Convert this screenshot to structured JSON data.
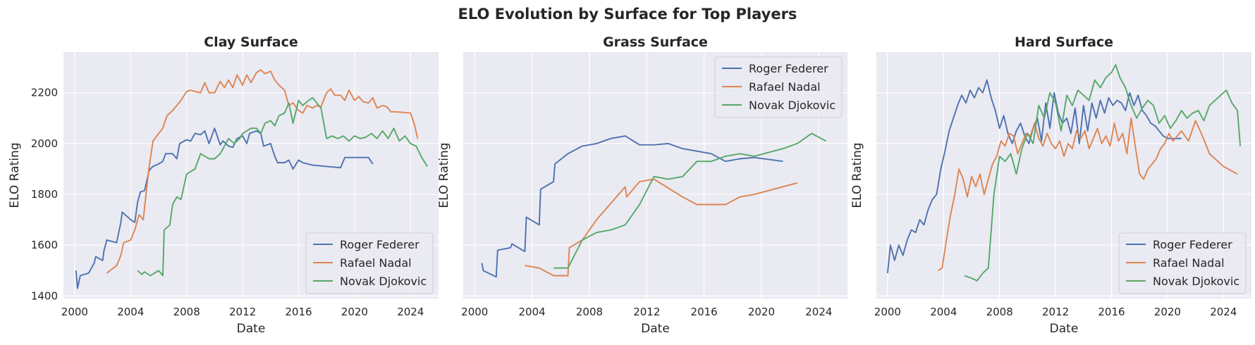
{
  "figure": {
    "title": "ELO Evolution by Surface for Top Players"
  },
  "colors": {
    "Roger Federer": "#4c72b0",
    "Rafael Nadal": "#dd8452",
    "Novak Djokovic": "#55a868",
    "axes_bg": "#eaeaf2",
    "grid": "#ffffff"
  },
  "chart_data": [
    {
      "type": "line",
      "title": "Clay Surface",
      "xlabel": "Date",
      "ylabel": "ELO Rating",
      "xlim": [
        1999.2,
        2026.0
      ],
      "ylim": [
        1390,
        2360
      ],
      "xticks": [
        2000,
        2004,
        2008,
        2012,
        2016,
        2020,
        2024
      ],
      "xtick_labels": [
        "2000",
        "2004",
        "2008",
        "2012",
        "2016",
        "2020",
        "2024"
      ],
      "yticks": [
        1400,
        1600,
        1800,
        2000,
        2200
      ],
      "ytick_labels": [
        "1400",
        "1600",
        "1800",
        "2000",
        "2200"
      ],
      "legend": "lower-right",
      "grid": true,
      "series": [
        {
          "name": "Roger Federer",
          "x": [
            2000.1,
            2000.2,
            2000.4,
            2001.0,
            2001.4,
            2001.5,
            2002.0,
            2002.1,
            2002.3,
            2003.0,
            2003.3,
            2003.4,
            2004.0,
            2004.3,
            2004.5,
            2004.7,
            2005.0,
            2005.3,
            2005.4,
            2005.6,
            2006.0,
            2006.3,
            2006.5,
            2007.0,
            2007.3,
            2007.5,
            2008.0,
            2008.3,
            2008.6,
            2009.0,
            2009.3,
            2009.6,
            2010.0,
            2010.4,
            2010.6,
            2011.0,
            2011.3,
            2011.6,
            2012.0,
            2012.3,
            2012.5,
            2013.0,
            2013.3,
            2013.5,
            2014.0,
            2014.3,
            2014.5,
            2015.0,
            2015.3,
            2015.6,
            2016.0,
            2016.3,
            2017.0,
            2019.0,
            2019.3,
            2021.0,
            2021.3
          ],
          "y": [
            1500,
            1430,
            1480,
            1490,
            1530,
            1555,
            1540,
            1580,
            1620,
            1610,
            1690,
            1730,
            1700,
            1690,
            1770,
            1810,
            1815,
            1890,
            1900,
            1910,
            1920,
            1930,
            1960,
            1960,
            1940,
            2000,
            2015,
            2010,
            2040,
            2035,
            2050,
            2000,
            2060,
            1995,
            2010,
            1990,
            1985,
            2020,
            2030,
            2000,
            2040,
            2050,
            2040,
            1990,
            2000,
            1950,
            1925,
            1925,
            1935,
            1900,
            1935,
            1925,
            1915,
            1905,
            1945,
            1945,
            1920
          ]
        },
        {
          "name": "Rafael Nadal",
          "x": [
            2002.3,
            2003.0,
            2003.3,
            2003.5,
            2004.0,
            2004.3,
            2004.6,
            2004.9,
            2005.1,
            2005.3,
            2005.6,
            2006.0,
            2006.3,
            2006.6,
            2007.0,
            2007.3,
            2007.6,
            2008.0,
            2008.3,
            2008.6,
            2009.0,
            2009.3,
            2009.6,
            2010.0,
            2010.4,
            2010.7,
            2011.0,
            2011.3,
            2011.6,
            2012.0,
            2012.3,
            2012.6,
            2013.0,
            2013.3,
            2013.6,
            2014.0,
            2014.3,
            2014.6,
            2015.0,
            2015.3,
            2015.6,
            2016.0,
            2016.3,
            2016.6,
            2017.0,
            2017.3,
            2017.6,
            2018.0,
            2018.3,
            2018.6,
            2019.0,
            2019.3,
            2019.6,
            2020.0,
            2020.3,
            2020.6,
            2021.0,
            2021.3,
            2021.6,
            2022.0,
            2022.3,
            2022.6,
            2023.0,
            2024.0,
            2024.3,
            2024.5
          ],
          "y": [
            1490,
            1520,
            1560,
            1610,
            1620,
            1660,
            1720,
            1700,
            1800,
            1900,
            2010,
            2040,
            2060,
            2110,
            2130,
            2150,
            2170,
            2205,
            2210,
            2205,
            2200,
            2240,
            2200,
            2200,
            2245,
            2220,
            2250,
            2220,
            2270,
            2230,
            2270,
            2240,
            2280,
            2290,
            2275,
            2285,
            2250,
            2230,
            2210,
            2150,
            2160,
            2130,
            2120,
            2150,
            2140,
            2150,
            2145,
            2200,
            2215,
            2190,
            2190,
            2170,
            2210,
            2170,
            2185,
            2165,
            2160,
            2180,
            2140,
            2150,
            2145,
            2125,
            2125,
            2120,
            2070,
            2020
          ]
        },
        {
          "name": "Novak Djokovic",
          "x": [
            2004.5,
            2004.8,
            2005.0,
            2005.4,
            2005.7,
            2006.0,
            2006.3,
            2006.4,
            2006.8,
            2007.0,
            2007.3,
            2007.6,
            2008.0,
            2008.3,
            2008.6,
            2009.0,
            2009.3,
            2009.6,
            2010.0,
            2010.4,
            2010.7,
            2011.0,
            2011.4,
            2011.8,
            2012.0,
            2012.3,
            2012.6,
            2013.0,
            2013.3,
            2013.6,
            2014.0,
            2014.3,
            2014.6,
            2015.0,
            2015.3,
            2015.6,
            2016.0,
            2016.3,
            2016.6,
            2017.0,
            2017.3,
            2017.6,
            2018.0,
            2018.4,
            2018.8,
            2019.2,
            2019.6,
            2020.0,
            2020.4,
            2020.8,
            2021.2,
            2021.6,
            2022.0,
            2022.4,
            2022.8,
            2023.2,
            2023.6,
            2024.0,
            2024.4,
            2024.8,
            2025.2
          ],
          "y": [
            1500,
            1485,
            1495,
            1480,
            1490,
            1500,
            1480,
            1660,
            1680,
            1760,
            1790,
            1780,
            1880,
            1890,
            1900,
            1960,
            1950,
            1940,
            1940,
            1960,
            1990,
            2020,
            2000,
            2020,
            2040,
            2050,
            2060,
            2060,
            2040,
            2080,
            2090,
            2070,
            2110,
            2120,
            2160,
            2080,
            2170,
            2150,
            2165,
            2180,
            2160,
            2140,
            2020,
            2030,
            2020,
            2030,
            2010,
            2030,
            2020,
            2025,
            2040,
            2020,
            2050,
            2020,
            2060,
            2010,
            2030,
            2000,
            1990,
            1945,
            1910
          ]
        }
      ]
    },
    {
      "type": "line",
      "title": "Grass Surface",
      "xlabel": "Date",
      "ylabel": "ELO Rating",
      "xlim": [
        1999.2,
        2026.0
      ],
      "ylim": [
        1390,
        2360
      ],
      "xticks": [
        2000,
        2004,
        2008,
        2012,
        2016,
        2020,
        2024
      ],
      "xtick_labels": [
        "2000",
        "2004",
        "2008",
        "2012",
        "2016",
        "2020",
        "2024"
      ],
      "yticks": [
        1400,
        1600,
        1800,
        2000,
        2200
      ],
      "ytick_labels": [],
      "legend": "upper-right",
      "grid": true,
      "series": [
        {
          "name": "Roger Federer",
          "x": [
            2000.5,
            2000.6,
            2001.5,
            2001.6,
            2002.5,
            2002.6,
            2003.5,
            2003.6,
            2004.5,
            2004.6,
            2005.5,
            2005.6,
            2006.5,
            2007.5,
            2008.5,
            2009.5,
            2010.5,
            2011.5,
            2012.5,
            2013.5,
            2014.5,
            2015.5,
            2016.5,
            2017.5,
            2018.5,
            2019.5,
            2021.5
          ],
          "y": [
            1530,
            1500,
            1475,
            1580,
            1590,
            1605,
            1575,
            1710,
            1680,
            1820,
            1850,
            1920,
            1960,
            1990,
            2000,
            2020,
            2030,
            1995,
            1995,
            2000,
            1980,
            1970,
            1960,
            1930,
            1940,
            1945,
            1930
          ]
        },
        {
          "name": "Rafael Nadal",
          "x": [
            2003.5,
            2004.5,
            2005.5,
            2006.5,
            2006.6,
            2007.5,
            2008.5,
            2010.5,
            2010.6,
            2011.5,
            2012.5,
            2014.5,
            2015.5,
            2017.5,
            2018.5,
            2019.5,
            2022.5
          ],
          "y": [
            1520,
            1510,
            1480,
            1480,
            1590,
            1620,
            1700,
            1830,
            1790,
            1850,
            1860,
            1790,
            1760,
            1760,
            1790,
            1800,
            1845
          ]
        },
        {
          "name": "Novak Djokovic",
          "x": [
            2005.5,
            2006.5,
            2007.5,
            2008.5,
            2009.5,
            2010.5,
            2011.5,
            2012.5,
            2013.5,
            2014.5,
            2015.5,
            2016.5,
            2017.5,
            2018.5,
            2019.5,
            2021.5,
            2022.5,
            2023.5,
            2024.5
          ],
          "y": [
            1510,
            1510,
            1620,
            1650,
            1660,
            1680,
            1760,
            1870,
            1860,
            1870,
            1930,
            1930,
            1950,
            1960,
            1950,
            1980,
            2000,
            2040,
            2010
          ]
        }
      ]
    },
    {
      "type": "line",
      "title": "Hard Surface",
      "xlabel": "Date",
      "ylabel": "ELO Rating",
      "xlim": [
        1999.2,
        2026.0
      ],
      "ylim": [
        1390,
        2360
      ],
      "xticks": [
        2000,
        2004,
        2008,
        2012,
        2016,
        2020,
        2024
      ],
      "xtick_labels": [
        "2000",
        "2004",
        "2008",
        "2012",
        "2016",
        "2020",
        "2024"
      ],
      "yticks": [
        1400,
        1600,
        1800,
        2000,
        2200
      ],
      "ytick_labels": [],
      "legend": "lower-right",
      "grid": true,
      "series": [
        {
          "name": "Roger Federer",
          "x": [
            2000.0,
            2000.2,
            2000.5,
            2000.8,
            2001.1,
            2001.4,
            2001.7,
            2002.0,
            2002.3,
            2002.6,
            2002.9,
            2003.2,
            2003.5,
            2003.8,
            2004.1,
            2004.4,
            2004.7,
            2005.0,
            2005.3,
            2005.6,
            2005.9,
            2006.2,
            2006.5,
            2006.8,
            2007.1,
            2007.4,
            2007.7,
            2008.0,
            2008.3,
            2008.6,
            2008.9,
            2009.2,
            2009.5,
            2009.8,
            2010.1,
            2010.4,
            2010.7,
            2011.0,
            2011.3,
            2011.6,
            2011.9,
            2012.2,
            2012.5,
            2012.8,
            2013.1,
            2013.4,
            2013.7,
            2014.0,
            2014.3,
            2014.6,
            2014.9,
            2015.2,
            2015.5,
            2015.8,
            2016.1,
            2016.4,
            2016.7,
            2017.0,
            2017.3,
            2017.6,
            2017.9,
            2018.2,
            2018.5,
            2018.8,
            2019.1,
            2019.4,
            2019.7,
            2020.0,
            2021.0
          ],
          "y": [
            1490,
            1600,
            1540,
            1600,
            1560,
            1620,
            1660,
            1650,
            1700,
            1680,
            1740,
            1780,
            1800,
            1900,
            1970,
            2050,
            2100,
            2150,
            2190,
            2160,
            2210,
            2180,
            2220,
            2200,
            2250,
            2180,
            2130,
            2060,
            2110,
            2040,
            2000,
            2050,
            2080,
            2030,
            2000,
            2060,
            2100,
            2010,
            2160,
            2060,
            2200,
            2120,
            2080,
            2100,
            2040,
            2140,
            2000,
            2150,
            2050,
            2160,
            2100,
            2170,
            2120,
            2180,
            2150,
            2170,
            2160,
            2130,
            2200,
            2150,
            2190,
            2130,
            2110,
            2080,
            2070,
            2050,
            2030,
            2020,
            2020
          ]
        },
        {
          "name": "Rafael Nadal",
          "x": [
            2003.6,
            2003.9,
            2004.2,
            2004.5,
            2004.8,
            2005.1,
            2005.4,
            2005.7,
            2006.0,
            2006.3,
            2006.6,
            2006.9,
            2007.2,
            2007.5,
            2007.8,
            2008.1,
            2008.4,
            2008.7,
            2009.0,
            2009.3,
            2009.6,
            2009.9,
            2010.2,
            2010.5,
            2010.8,
            2011.1,
            2011.4,
            2011.7,
            2012.0,
            2012.3,
            2012.6,
            2012.9,
            2013.2,
            2013.5,
            2013.8,
            2014.1,
            2014.4,
            2014.7,
            2015.0,
            2015.3,
            2015.6,
            2015.9,
            2016.2,
            2016.5,
            2016.8,
            2017.1,
            2017.4,
            2017.7,
            2018.0,
            2018.3,
            2018.6,
            2018.9,
            2019.2,
            2019.5,
            2019.8,
            2020.1,
            2020.4,
            2021.0,
            2021.5,
            2022.0,
            2022.5,
            2023.0,
            2024.0,
            2025.0
          ],
          "y": [
            1500,
            1510,
            1620,
            1720,
            1800,
            1900,
            1860,
            1790,
            1870,
            1830,
            1880,
            1800,
            1860,
            1920,
            1950,
            2010,
            1990,
            2040,
            2030,
            1960,
            2000,
            2040,
            2030,
            2080,
            2020,
            1990,
            2040,
            2000,
            1980,
            2010,
            1950,
            2000,
            1980,
            2050,
            2020,
            2050,
            1980,
            2020,
            2060,
            2000,
            2030,
            1990,
            2080,
            2010,
            2040,
            1960,
            2100,
            1990,
            1880,
            1860,
            1900,
            1920,
            1940,
            1980,
            2000,
            2040,
            2010,
            2050,
            2010,
            2090,
            2030,
            1960,
            1910,
            1880
          ]
        },
        {
          "name": "Novak Djokovic",
          "x": [
            2005.5,
            2006.0,
            2006.4,
            2006.8,
            2007.2,
            2007.6,
            2008.0,
            2008.4,
            2008.8,
            2009.2,
            2009.6,
            2010.0,
            2010.4,
            2010.8,
            2011.2,
            2011.6,
            2012.0,
            2012.4,
            2012.8,
            2013.2,
            2013.6,
            2014.0,
            2014.4,
            2014.8,
            2015.2,
            2015.6,
            2016.0,
            2016.3,
            2016.6,
            2017.0,
            2017.4,
            2017.8,
            2018.2,
            2018.6,
            2019.0,
            2019.4,
            2019.8,
            2020.2,
            2020.6,
            2021.0,
            2021.4,
            2021.8,
            2022.2,
            2022.6,
            2023.0,
            2023.4,
            2023.8,
            2024.2,
            2024.6,
            2025.0,
            2025.2
          ],
          "y": [
            1480,
            1470,
            1460,
            1490,
            1510,
            1800,
            1950,
            1930,
            1960,
            1880,
            1980,
            2040,
            2000,
            2150,
            2100,
            2200,
            2160,
            2050,
            2190,
            2150,
            2210,
            2190,
            2170,
            2250,
            2220,
            2260,
            2280,
            2310,
            2260,
            2220,
            2150,
            2100,
            2140,
            2170,
            2150,
            2080,
            2110,
            2060,
            2090,
            2130,
            2100,
            2120,
            2130,
            2090,
            2150,
            2170,
            2190,
            2210,
            2160,
            2130,
            1990
          ]
        }
      ]
    }
  ]
}
